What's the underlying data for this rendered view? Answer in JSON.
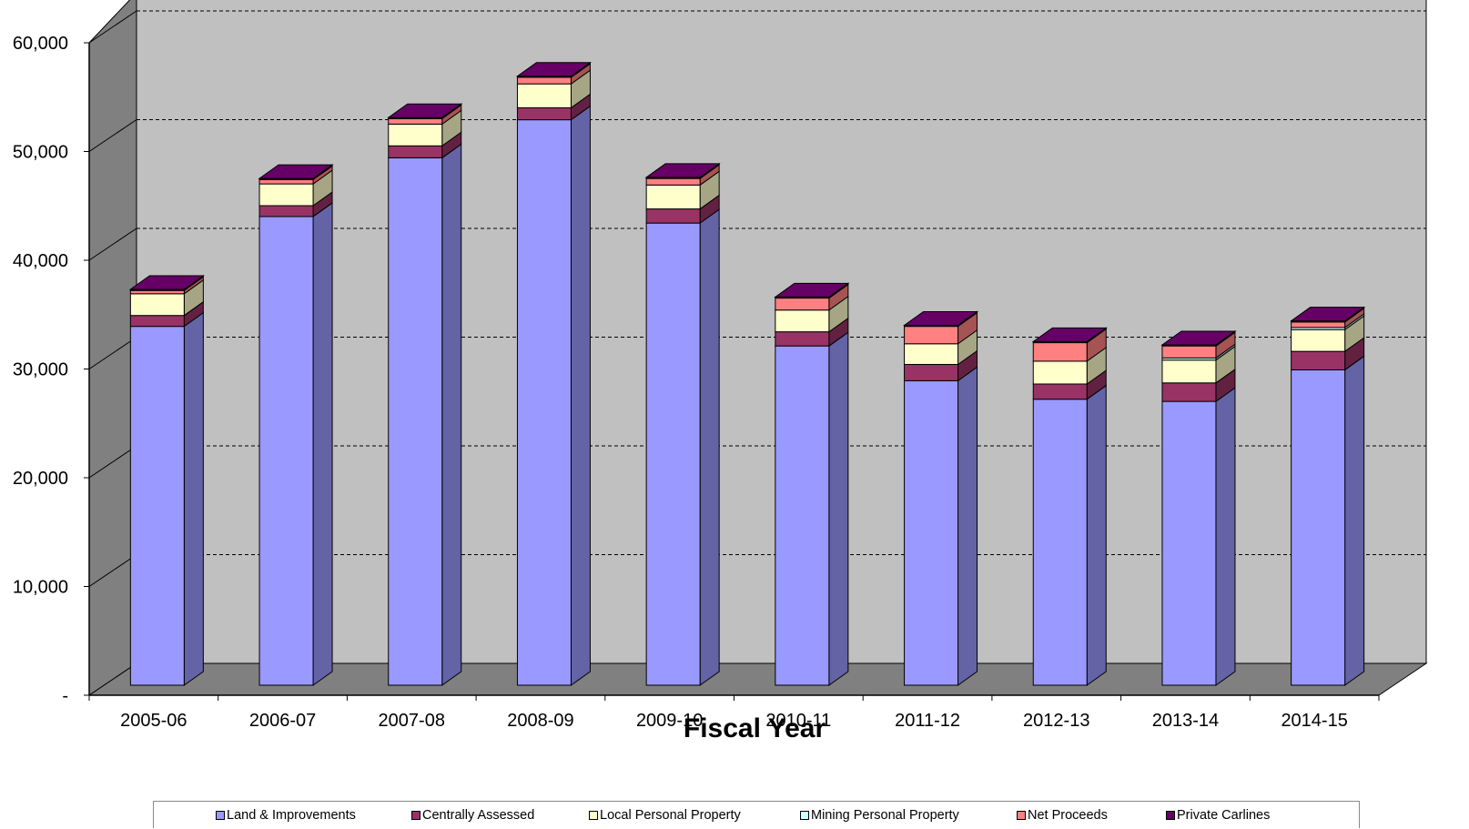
{
  "chart_data": {
    "type": "bar",
    "stacked": true,
    "three_d": true,
    "categories": [
      "2005-06",
      "2006-07",
      "2007-08",
      "2008-09",
      "2009-10",
      "2010-11",
      "2011-12",
      "2012-13",
      "2013-14",
      "2014-15"
    ],
    "series": [
      {
        "name": "Land & Improvements",
        "color": "#9999ff",
        "values": [
          33000,
          43100,
          48500,
          52000,
          42500,
          31200,
          28000,
          26300,
          26100,
          29000
        ]
      },
      {
        "name": "Centrally Assessed",
        "color": "#993366",
        "values": [
          1000,
          1000,
          1100,
          1100,
          1300,
          1300,
          1500,
          1400,
          1700,
          1700
        ]
      },
      {
        "name": "Local Personal Property",
        "color": "#ffffcc",
        "values": [
          2000,
          2000,
          2000,
          2200,
          2200,
          2000,
          1900,
          2100,
          2100,
          2000
        ]
      },
      {
        "name": "Mining Personal Property",
        "color": "#ccffff",
        "values": [
          0,
          0,
          0,
          0,
          0,
          0,
          0,
          0,
          200,
          200
        ]
      },
      {
        "name": "Net Proceeds",
        "color": "#ff8080",
        "values": [
          300,
          400,
          500,
          600,
          600,
          1100,
          1600,
          1700,
          1100,
          500
        ]
      },
      {
        "name": "Private Carlines",
        "color": "#660066",
        "values": [
          100,
          100,
          100,
          100,
          100,
          100,
          100,
          100,
          100,
          100
        ]
      }
    ],
    "y_ticks": [
      "-",
      "10,000",
      "20,000",
      "30,000",
      "40,000",
      "50,000",
      "60,000"
    ],
    "ylim": [
      0,
      60000
    ],
    "xlabel": "Fiscal Year",
    "ylabel": "",
    "grid": true,
    "legend_position": "bottom"
  }
}
